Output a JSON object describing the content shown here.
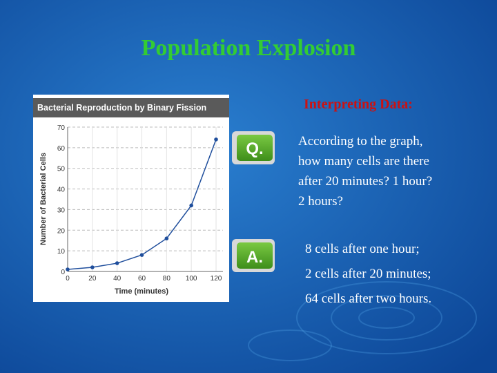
{
  "slide": {
    "title": "Population Explosion",
    "heading": "Interpreting Data:",
    "question_badge": "Q.",
    "answer_badge": "A.",
    "question_lines": [
      "According to the graph,",
      "how many cells are there",
      "after 20 minutes? 1 hour?",
      "2 hours?"
    ],
    "answer_lines": [
      "8 cells after one hour;",
      "2 cells after 20 minutes;",
      "64 cells after two hours."
    ]
  },
  "chart_data": {
    "type": "line",
    "title": "Bacterial Reproduction by Binary Fission",
    "x_label": "Time (minutes)",
    "y_label": "Number of Bacterial Cells",
    "x": [
      0,
      20,
      40,
      60,
      80,
      100,
      120
    ],
    "values": [
      1,
      2,
      4,
      8,
      16,
      32,
      64
    ],
    "color": "#1f4e9c",
    "xlim": [
      0,
      120
    ],
    "xticks": [
      0,
      20,
      40,
      60,
      80,
      100,
      120
    ],
    "ylim": [
      0,
      70
    ],
    "yticks": [
      0,
      10,
      20,
      30,
      40,
      50,
      60,
      70
    ],
    "grid": true
  }
}
